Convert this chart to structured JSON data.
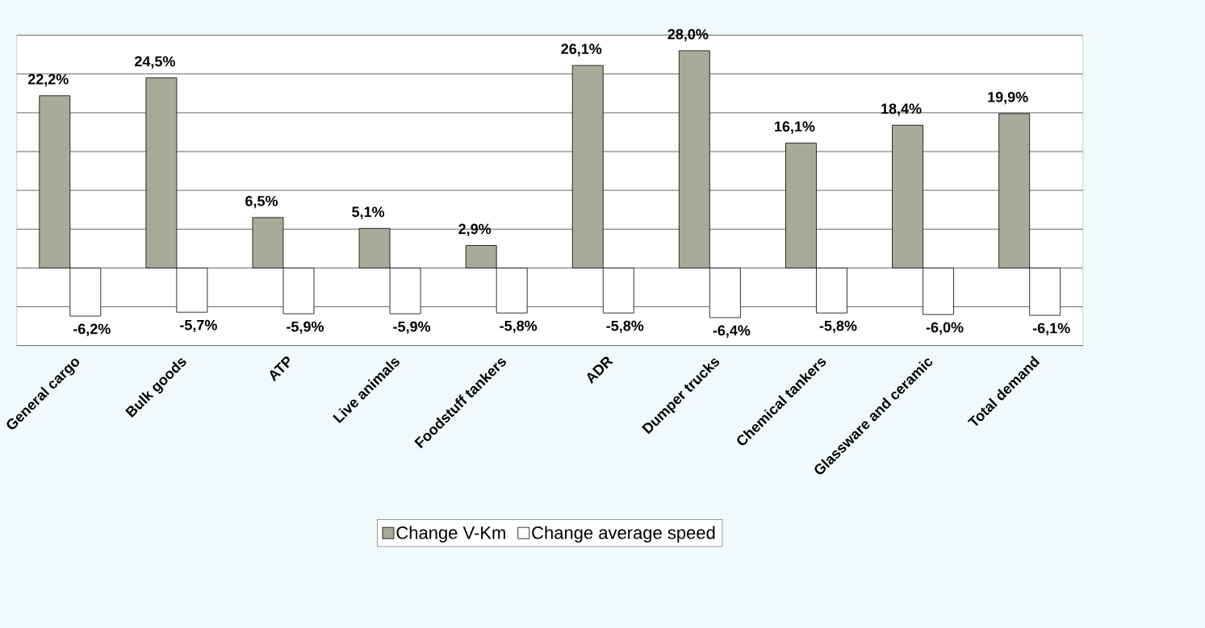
{
  "chart_data": {
    "type": "bar",
    "categories": [
      "General cargo",
      "Bulk goods",
      "ATP",
      "Live animals",
      "Foodstuff tankers",
      "ADR",
      "Dumper trucks",
      "Chemical tankers",
      "Glassware and ceramic",
      "Total demand"
    ],
    "series": [
      {
        "name": "Change V-Km",
        "color": "#a8aa9a",
        "values": [
          22.2,
          24.5,
          6.5,
          5.1,
          2.9,
          26.1,
          28.0,
          16.1,
          18.4,
          19.9
        ],
        "value_labels": [
          "22,2%",
          "24,5%",
          "6,5%",
          "5,1%",
          "2,9%",
          "26,1%",
          "28,0%",
          "16,1%",
          "18,4%",
          "19,9%"
        ]
      },
      {
        "name": "Change average speed",
        "color": "#ffffff",
        "values": [
          -6.2,
          -5.7,
          -5.9,
          -5.9,
          -5.8,
          -5.8,
          -6.4,
          -5.8,
          -6.0,
          -6.1
        ],
        "value_labels": [
          "-6,2%",
          "-5,7%",
          "-5,9%",
          "-5,9%",
          "-5,8%",
          "-5,8%",
          "-6,4%",
          "-5,8%",
          "-6,0%",
          "-6,1%"
        ]
      }
    ],
    "ylim": [
      -10,
      30
    ],
    "yticks": [
      {
        "value": -10,
        "label": null
      },
      {
        "value": -5,
        "label": null
      },
      {
        "value": 0,
        "label": null
      },
      {
        "value": 5,
        "label": null
      },
      {
        "value": 10,
        "label": null
      },
      {
        "value": 15,
        "label": null
      },
      {
        "value": 20,
        "label": null
      },
      {
        "value": 25,
        "label": null
      },
      {
        "value": 30,
        "label": null
      }
    ],
    "grid": "y",
    "legend": "bottom",
    "tick_labels": "x"
  }
}
